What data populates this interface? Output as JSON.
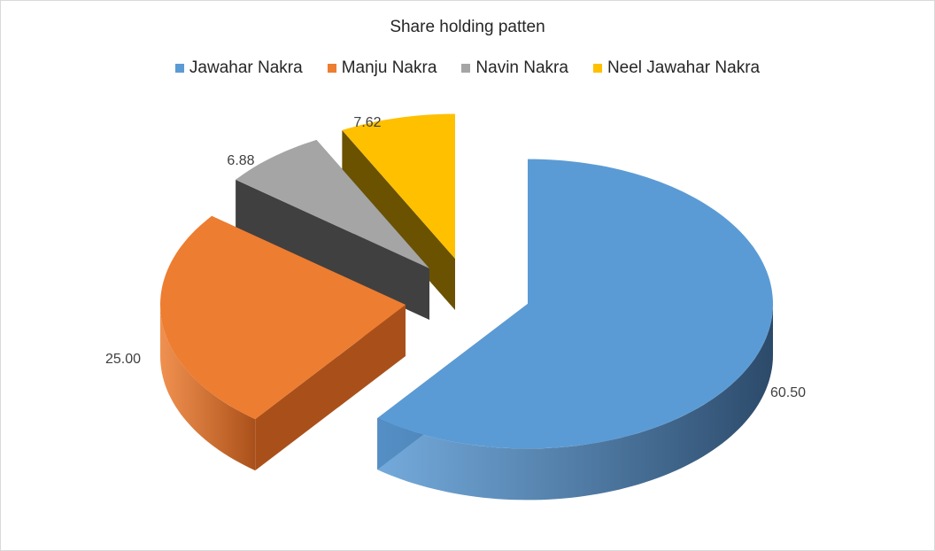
{
  "chart_data": {
    "type": "pie",
    "title": "Share holding patten",
    "legend_position": "top",
    "slices": [
      {
        "label": "Jawahar Nakra",
        "value": 60.5,
        "display": "60.50",
        "color": "#5B9BD5",
        "side": "#2C4A6A"
      },
      {
        "label": "Manju Nakra",
        "value": 25.0,
        "display": "25.00",
        "color": "#ED7D31",
        "side": "#A9501A"
      },
      {
        "label": "Navin Nakra",
        "value": 6.88,
        "display": "6.88",
        "color": "#A5A5A5",
        "side": "#404040"
      },
      {
        "label": "Neel Jawahar Nakra",
        "value": 7.62,
        "display": "7.62",
        "color": "#FFC000",
        "side": "#6A5200"
      }
    ]
  }
}
